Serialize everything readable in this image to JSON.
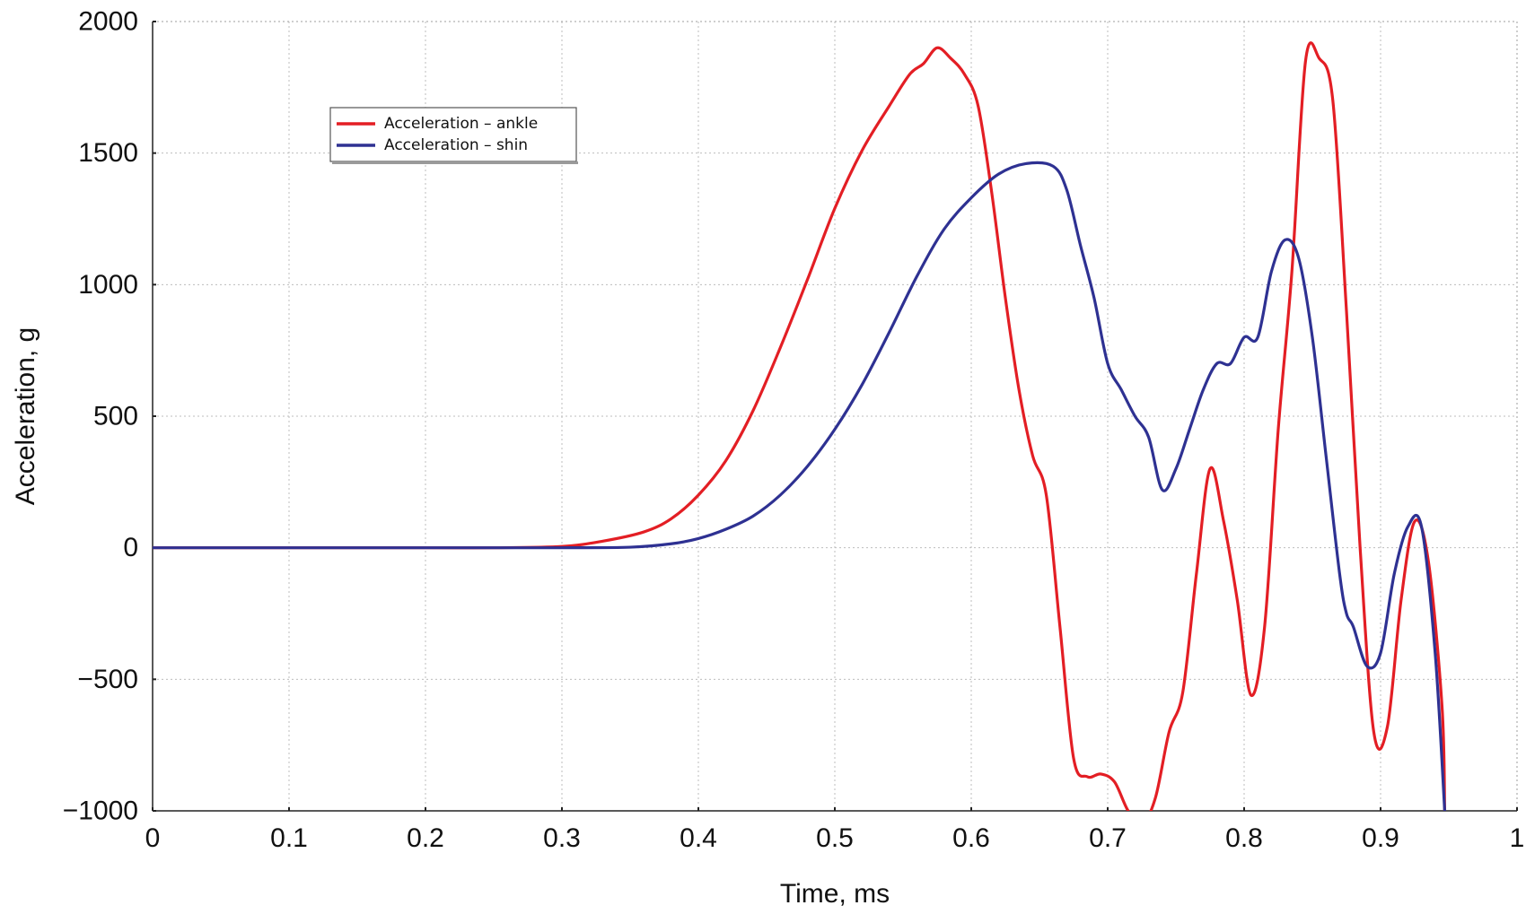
{
  "chart_data": {
    "type": "line",
    "title": "",
    "xlabel": "Time, ms",
    "ylabel": "Acceleration, g",
    "xlim": [
      0,
      1
    ],
    "ylim": [
      -1000,
      2000
    ],
    "x_ticks": [
      0,
      0.1,
      0.2,
      0.3,
      0.4,
      0.5,
      0.6,
      0.7,
      0.8,
      0.9,
      1
    ],
    "x_tick_labels": [
      "0",
      "0.1",
      "0.2",
      "0.3",
      "0.4",
      "0.5",
      "0.6",
      "0.7",
      "0.8",
      "0.9",
      "1"
    ],
    "y_ticks": [
      2000,
      1500,
      1000,
      500,
      0,
      -500,
      -1000
    ],
    "y_tick_labels": [
      "2000",
      "1500",
      "1000",
      "500",
      "0",
      "−500",
      "−1000"
    ],
    "grid": true,
    "legend_position": "top-left",
    "series": [
      {
        "name": "Acceleration – ankle",
        "color": "#e31e24",
        "x": [
          0,
          0.1,
          0.2,
          0.25,
          0.3,
          0.33,
          0.36,
          0.38,
          0.4,
          0.42,
          0.44,
          0.46,
          0.48,
          0.5,
          0.52,
          0.54,
          0.555,
          0.565,
          0.575,
          0.585,
          0.595,
          0.605,
          0.615,
          0.625,
          0.635,
          0.645,
          0.655,
          0.665,
          0.675,
          0.685,
          0.695,
          0.705,
          0.715,
          0.725,
          0.735,
          0.745,
          0.755,
          0.765,
          0.775,
          0.785,
          0.795,
          0.805,
          0.815,
          0.825,
          0.835,
          0.845,
          0.855,
          0.865,
          0.875,
          0.885,
          0.895,
          0.905,
          0.915,
          0.925,
          0.935,
          0.945,
          0.947
        ],
        "y": [
          0,
          0,
          0,
          0,
          5,
          25,
          60,
          110,
          200,
          330,
          520,
          760,
          1020,
          1290,
          1510,
          1680,
          1800,
          1840,
          1900,
          1860,
          1800,
          1680,
          1350,
          950,
          600,
          350,
          200,
          -300,
          -800,
          -870,
          -860,
          -890,
          -1000,
          -1050,
          -950,
          -700,
          -550,
          -100,
          300,
          100,
          -200,
          -560,
          -300,
          450,
          1050,
          1850,
          1860,
          1700,
          900,
          0,
          -700,
          -680,
          -200,
          100,
          -50,
          -600,
          -1000
        ]
      },
      {
        "name": "Acceleration – shin",
        "color": "#2e3192",
        "x": [
          0,
          0.1,
          0.2,
          0.3,
          0.35,
          0.38,
          0.4,
          0.42,
          0.44,
          0.46,
          0.48,
          0.5,
          0.52,
          0.54,
          0.56,
          0.58,
          0.6,
          0.62,
          0.64,
          0.66,
          0.67,
          0.68,
          0.69,
          0.7,
          0.71,
          0.72,
          0.73,
          0.74,
          0.75,
          0.76,
          0.77,
          0.78,
          0.79,
          0.8,
          0.81,
          0.82,
          0.83,
          0.84,
          0.85,
          0.86,
          0.87,
          0.875,
          0.88,
          0.89,
          0.9,
          0.91,
          0.92,
          0.93,
          0.94,
          0.947
        ],
        "y": [
          0,
          0,
          0,
          0,
          2,
          15,
          35,
          70,
          120,
          200,
          310,
          450,
          620,
          820,
          1030,
          1210,
          1330,
          1420,
          1460,
          1450,
          1360,
          1150,
          950,
          700,
          600,
          500,
          420,
          220,
          300,
          450,
          600,
          700,
          700,
          800,
          800,
          1050,
          1170,
          1100,
          800,
          350,
          -100,
          -250,
          -300,
          -450,
          -400,
          -100,
          80,
          80,
          -400,
          -1000
        ]
      }
    ]
  }
}
